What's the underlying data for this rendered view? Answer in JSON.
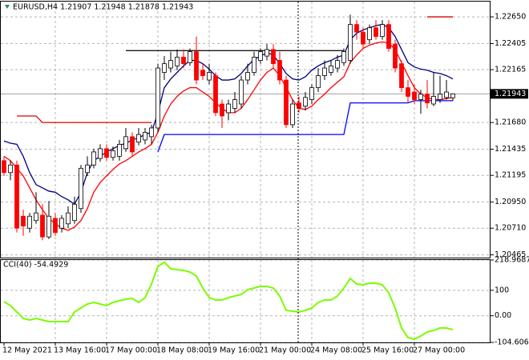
{
  "chart_data": [
    {
      "type": "candlestick",
      "title": "EURUSD,H4 1.21907 1.21948 1.21878 1.21943",
      "categories": [
        "12 May 2021",
        null,
        null,
        null,
        null,
        null,
        null,
        null,
        "13 May 16:00",
        null,
        null,
        null,
        null,
        null,
        null,
        null,
        "17 May 00:00",
        null,
        null,
        null,
        null,
        null,
        null,
        null,
        "18 May 08:00",
        null,
        null,
        null,
        null,
        null,
        null,
        null,
        "19 May 16:00",
        null,
        null,
        null,
        null,
        null,
        null,
        null,
        "21 May 00:00",
        null,
        null,
        null,
        null,
        null,
        null,
        null,
        "24 May 08:00",
        null,
        null,
        null,
        null,
        null,
        null,
        null,
        "25 May 16:00",
        null,
        null,
        null,
        null,
        null,
        null,
        null,
        "27 May 00:00",
        null,
        null,
        null,
        null,
        null,
        null
      ],
      "open": [
        1.2133,
        1.2122,
        1.2129,
        1.2082,
        1.2071,
        1.2078,
        1.2083,
        1.2063,
        1.208,
        1.2071,
        1.2075,
        1.2078,
        1.2089,
        1.2122,
        1.2129,
        1.2135,
        1.2144,
        1.2136,
        1.2137,
        1.2144,
        1.2155,
        1.215,
        1.2152,
        1.2155,
        1.2163,
        1.2214,
        1.2218,
        1.222,
        1.2228,
        1.2223,
        1.2233,
        1.2216,
        1.2207,
        1.2211,
        1.2185,
        1.2177,
        1.2181,
        1.2185,
        1.2207,
        1.2214,
        1.2225,
        1.2229,
        1.2235,
        1.2225,
        1.2207,
        1.2166,
        1.2186,
        1.2183,
        1.2189,
        1.22,
        1.2211,
        1.2214,
        1.2218,
        1.2223,
        1.2225,
        1.2258,
        1.2251,
        1.2244,
        1.2255,
        1.2247,
        1.2258,
        1.224,
        1.2222,
        1.22,
        1.2196,
        1.2189,
        1.2194,
        1.2185,
        1.2189,
        1.2191,
        1.21907
      ],
      "high": [
        1.2137,
        1.2133,
        1.2133,
        1.2088,
        1.2085,
        1.2104,
        1.2093,
        1.2096,
        1.2085,
        1.2083,
        1.2091,
        1.21,
        1.2129,
        1.2137,
        1.2144,
        1.2148,
        1.2148,
        1.2146,
        1.2152,
        1.2163,
        1.2159,
        1.2163,
        1.2163,
        1.2166,
        1.2222,
        1.2229,
        1.2233,
        1.2235,
        1.2235,
        1.2236,
        1.2247,
        1.2222,
        1.2222,
        1.2214,
        1.2189,
        1.2189,
        1.2196,
        1.2211,
        1.2222,
        1.2233,
        1.2236,
        1.224,
        1.224,
        1.2233,
        1.2211,
        1.2189,
        1.2192,
        1.2196,
        1.2203,
        1.2218,
        1.2225,
        1.2225,
        1.223,
        1.2236,
        1.2267,
        1.2262,
        1.2255,
        1.2258,
        1.2262,
        1.2262,
        1.2262,
        1.2244,
        1.2225,
        1.2207,
        1.2203,
        1.2198,
        1.2207,
        1.2214,
        1.2211,
        1.2207,
        1.21948
      ],
      "low": [
        1.2119,
        1.2115,
        1.2067,
        1.2064,
        1.2067,
        1.2075,
        1.206,
        1.2061,
        1.2064,
        1.2067,
        1.2071,
        1.2075,
        1.2085,
        1.2119,
        1.2126,
        1.2132,
        1.2133,
        1.2133,
        1.2133,
        1.2141,
        1.2137,
        1.2147,
        1.2148,
        1.2148,
        1.2159,
        1.2207,
        1.2214,
        1.2216,
        1.2218,
        1.222,
        1.2203,
        1.2207,
        1.2203,
        1.2174,
        1.2163,
        1.217,
        1.2177,
        1.2181,
        1.2203,
        1.2211,
        1.2222,
        1.2225,
        1.2218,
        1.2203,
        1.2163,
        1.2163,
        1.2177,
        1.2179,
        1.2185,
        1.2196,
        1.2207,
        1.2211,
        1.2214,
        1.222,
        1.2222,
        1.2244,
        1.2236,
        1.224,
        1.2244,
        1.2244,
        1.2233,
        1.2214,
        1.2196,
        1.2186,
        1.2185,
        1.2176,
        1.2181,
        1.2183,
        1.2186,
        1.2189,
        1.21878
      ],
      "close": [
        1.2122,
        1.2129,
        1.2071,
        1.2073,
        1.2082,
        1.2085,
        1.2063,
        1.2082,
        1.2067,
        1.208,
        1.2085,
        1.2093,
        1.2126,
        1.2129,
        1.2141,
        1.2144,
        1.2136,
        1.2142,
        1.2148,
        1.2155,
        1.2141,
        1.2157,
        1.2159,
        1.2163,
        1.2218,
        1.2222,
        1.2225,
        1.2228,
        1.2222,
        1.2233,
        1.2207,
        1.2211,
        1.2214,
        1.2177,
        1.2174,
        1.2185,
        1.2189,
        1.2207,
        1.2214,
        1.2228,
        1.2233,
        1.2235,
        1.2222,
        1.2207,
        1.2166,
        1.2185,
        1.2181,
        1.2191,
        1.22,
        1.2211,
        1.2218,
        1.222,
        1.2225,
        1.2233,
        1.2258,
        1.2251,
        1.224,
        1.2255,
        1.2247,
        1.2258,
        1.2236,
        1.2218,
        1.22,
        1.2192,
        1.2189,
        1.2194,
        1.2186,
        1.2192,
        1.2194,
        1.2196,
        1.21943
      ],
      "up_color": "#ffffff",
      "down_color": "#ff0000",
      "overlays": [
        {
          "color": "#000080",
          "values": [
            1.2151,
            1.2149,
            1.2148,
            1.2137,
            1.2122,
            1.2111,
            1.2108,
            1.2105,
            1.2104,
            1.21,
            1.2097,
            1.2093,
            1.2104,
            1.2122,
            1.2133,
            1.2137,
            1.2141,
            1.2144,
            1.2147,
            1.2149,
            1.2152,
            1.2154,
            1.2157,
            1.2159,
            1.2177,
            1.22,
            1.2208,
            1.2214,
            1.222,
            1.2225,
            1.2225,
            1.2222,
            1.2217,
            1.2211,
            1.2207,
            1.2207,
            1.2208,
            1.2213,
            1.222,
            1.2226,
            1.2229,
            1.2232,
            1.223,
            1.2222,
            1.2213,
            1.2208,
            1.2207,
            1.221,
            1.2216,
            1.222,
            1.2223,
            1.2225,
            1.2228,
            1.223,
            1.2244,
            1.225,
            1.2253,
            1.2255,
            1.2257,
            1.2258,
            1.2255,
            1.2247,
            1.2235,
            1.2223,
            1.2219,
            1.2217,
            1.2216,
            1.2214,
            1.2213,
            1.2211,
            1.2208
          ]
        },
        {
          "color": "#ff0000",
          "values": [
            1.2137,
            1.2133,
            1.2126,
            1.2119,
            1.2108,
            1.2097,
            1.2088,
            1.208,
            1.2075,
            1.2071,
            1.2069,
            1.2072,
            1.2078,
            1.2089,
            1.2104,
            1.2113,
            1.2119,
            1.2125,
            1.213,
            1.2133,
            1.2137,
            1.2141,
            1.2144,
            1.2148,
            1.2159,
            1.2174,
            1.2185,
            1.2192,
            1.2197,
            1.22,
            1.22,
            1.2196,
            1.2192,
            1.2186,
            1.2181,
            1.2177,
            1.2177,
            1.2181,
            1.2189,
            1.2198,
            1.2207,
            1.2214,
            1.2218,
            1.2211,
            1.22,
            1.2189,
            1.2181,
            1.218,
            1.2183,
            1.2189,
            1.2194,
            1.22,
            1.2205,
            1.221,
            1.2223,
            1.223,
            1.2236,
            1.2239,
            1.2241,
            1.2242,
            1.2241,
            1.2235,
            1.2223,
            1.2211,
            1.22,
            1.2194,
            1.2191,
            1.2189,
            1.2189,
            1.219,
            1.2191
          ]
        },
        {
          "color": "#0000ff",
          "values": [
            null,
            null,
            null,
            null,
            null,
            null,
            null,
            null,
            null,
            null,
            null,
            null,
            null,
            null,
            null,
            null,
            null,
            null,
            null,
            null,
            null,
            null,
            null,
            null,
            1.2141,
            1.2157,
            1.2157,
            1.2157,
            1.2157,
            1.2157,
            1.2157,
            1.2157,
            1.2157,
            1.2157,
            1.2157,
            1.2157,
            1.2157,
            1.2157,
            1.2157,
            1.2157,
            1.2157,
            1.2157,
            1.2157,
            1.2157,
            1.2157,
            1.2157,
            1.2157,
            1.2157,
            1.2157,
            1.2157,
            1.2157,
            1.2157,
            1.2157,
            1.2157,
            1.2186,
            1.2186,
            1.2186,
            1.2186,
            1.2186,
            1.2186,
            1.2186,
            1.2186,
            1.2186,
            1.2186,
            1.2188,
            1.2188,
            1.2188,
            1.2188,
            1.2188,
            1.2188,
            1.2188
          ]
        },
        {
          "color": "#e00000",
          "values": [
            null,
            null,
            1.2174,
            1.2174,
            1.2174,
            1.2174,
            1.2168,
            1.2168,
            1.2168,
            1.2168,
            1.2168,
            1.2168,
            1.2168,
            1.2168,
            1.2168,
            1.2168,
            1.2168,
            1.2168,
            1.2168,
            1.2168,
            1.2168,
            1.2168,
            1.2168,
            1.2168,
            null,
            null,
            null,
            null,
            null,
            null,
            null,
            null,
            null,
            null,
            null,
            null,
            null,
            null,
            null,
            null,
            null,
            null,
            null,
            null,
            null,
            null,
            null,
            null,
            null,
            null,
            null,
            null,
            null,
            null,
            null,
            null,
            null,
            null,
            null,
            null,
            null,
            null,
            null,
            null,
            null,
            null,
            1.2265,
            1.2265,
            1.2265,
            1.2265,
            1.2265
          ]
        },
        {
          "color": "#000000",
          "values": [
            null,
            null,
            null,
            null,
            null,
            null,
            null,
            null,
            null,
            null,
            null,
            null,
            null,
            null,
            null,
            null,
            null,
            null,
            null,
            1.2234,
            1.2234,
            1.2234,
            1.2234,
            1.2234,
            1.2234,
            1.2234,
            1.2234,
            1.2234,
            1.2234,
            1.2234,
            1.2234,
            1.2234,
            1.2234,
            1.2234,
            1.2234,
            1.2234,
            1.2234,
            1.2234,
            1.2234,
            1.2234,
            1.2234,
            1.2234,
            1.2234,
            1.2234,
            1.2234,
            1.2234,
            1.2234,
            1.2234,
            1.2234,
            1.2234,
            1.2234,
            1.2234,
            1.2234,
            1.2234,
            null,
            null,
            null,
            null,
            null,
            null,
            null,
            null,
            null,
            null,
            null,
            null,
            null,
            null,
            null,
            null,
            null
          ]
        }
      ],
      "last_price": 1.21943,
      "ylim": [
        1.2044,
        1.2279
      ],
      "yticks": [
        {
          "value": 1.2265,
          "label": "1.22650"
        },
        1.22405,
        1.22165,
        {
          "value": 1.2168,
          "label": "1.21680"
        },
        1.21435,
        1.21195,
        {
          "value": 1.2095,
          "label": "1.20950"
        },
        {
          "value": 1.2071,
          "label": "1.20710"
        },
        1.20465
      ],
      "grid": true
    },
    {
      "type": "line",
      "title": "CCI(40) -54.4929",
      "color": "#7cfc00",
      "values": [
        55.6,
        39.9,
        14.8,
        -10.4,
        -16.6,
        -10.4,
        -16.6,
        -22.9,
        -22.9,
        -22.9,
        -22.9,
        14.8,
        30.5,
        46.2,
        52.5,
        46.2,
        39.9,
        52.5,
        58.7,
        65.0,
        68.2,
        52.5,
        71.3,
        124.7,
        193.8,
        210.5,
        184.4,
        181.3,
        178.1,
        171.8,
        156.1,
        109.0,
        71.3,
        61.9,
        61.9,
        71.3,
        77.6,
        83.9,
        102.7,
        109.0,
        115.3,
        115.3,
        109.0,
        77.6,
        21.1,
        17.9,
        14.8,
        21.1,
        30.5,
        52.5,
        61.9,
        61.9,
        77.6,
        109.0,
        146.7,
        124.7,
        121.6,
        127.9,
        127.9,
        121.6,
        90.2,
        30.5,
        -48.1,
        -85.8,
        -92.1,
        -79.5,
        -63.8,
        -57.5,
        -48.1,
        -48.1,
        -54.4929
      ],
      "ylim": [
        -104.606,
        218.9687
      ],
      "yticks": [
        218.9687,
        100,
        {
          "value": 0,
          "label": "0.00"
        },
        -104.606
      ],
      "grid": true
    }
  ]
}
